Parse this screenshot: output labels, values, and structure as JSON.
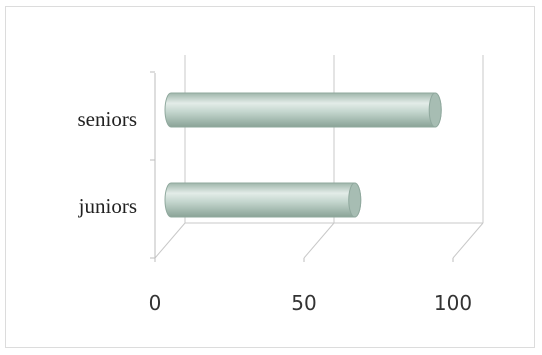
{
  "chart_data": {
    "type": "bar",
    "orientation": "horizontal",
    "style": "3d-cylinder",
    "categories": [
      "juniors",
      "seniors"
    ],
    "values": [
      63,
      90
    ],
    "xlim": [
      0,
      100
    ],
    "xticks": [
      "0",
      "50",
      "100"
    ],
    "grid": true,
    "legend": "none",
    "colors": {
      "bar_light": "#dfe9e4",
      "bar_mid": "#b9cdc4",
      "bar_dark": "#8fa89d",
      "bar_cap": "#a7bdb3",
      "grid": "#c8c8c8"
    }
  }
}
